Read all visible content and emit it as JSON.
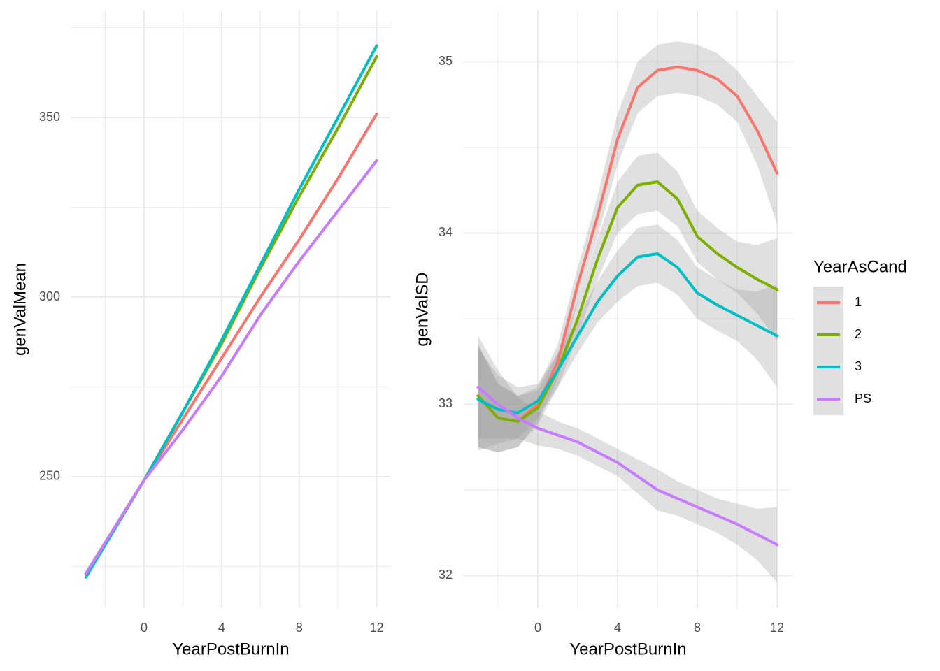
{
  "chart_data": [
    {
      "type": "line",
      "x_label": "YearPostBurnIn",
      "y_label": "genValMean",
      "x": [
        -3,
        0,
        2,
        4,
        6,
        8,
        10,
        12
      ],
      "series": [
        {
          "color": "#f8766d",
          "values": [
            223,
            249,
            266,
            283,
            300,
            316,
            333,
            351
          ]
        },
        {
          "color": "#7cae00",
          "values": [
            223,
            249,
            268,
            287,
            308,
            328,
            347,
            367
          ]
        },
        {
          "color": "#00bfc4",
          "values": [
            222,
            249,
            268,
            288,
            309,
            330,
            350,
            370
          ]
        },
        {
          "color": "#c77cff",
          "values": [
            223,
            249,
            263,
            278,
            295,
            310,
            324,
            338
          ]
        }
      ],
      "xlim": [
        -3.75,
        12.7
      ],
      "ylim": [
        213.4,
        379.8
      ],
      "xticks": [
        0,
        4,
        8,
        12
      ],
      "yticks": [
        250,
        300,
        350
      ],
      "xminor": [
        -2,
        2,
        6,
        10
      ],
      "yminor": [
        225,
        275,
        325,
        375
      ],
      "grid": true
    },
    {
      "type": "line",
      "x_label": "YearPostBurnIn",
      "y_label": "genValSD",
      "x": [
        -3,
        -2,
        -1,
        0,
        1,
        2,
        3,
        4,
        5,
        6,
        7,
        8,
        9,
        10,
        11,
        12
      ],
      "series": [
        {
          "name": "1",
          "color": "#f8766d",
          "values": [
            33.05,
            32.92,
            32.9,
            33.0,
            33.25,
            33.7,
            34.1,
            34.55,
            34.85,
            34.95,
            34.97,
            34.95,
            34.9,
            34.8,
            34.6,
            34.35
          ],
          "band": [
            0.3,
            0.2,
            0.15,
            0.1,
            0.1,
            0.1,
            0.12,
            0.15,
            0.15,
            0.15,
            0.15,
            0.15,
            0.15,
            0.15,
            0.2,
            0.3
          ]
        },
        {
          "name": "2",
          "color": "#7cae00",
          "values": [
            33.05,
            32.92,
            32.9,
            32.98,
            33.2,
            33.5,
            33.85,
            34.15,
            34.28,
            34.3,
            34.2,
            33.98,
            33.88,
            33.8,
            33.73,
            33.67
          ],
          "band": [
            0.3,
            0.2,
            0.15,
            0.1,
            0.1,
            0.1,
            0.12,
            0.15,
            0.17,
            0.17,
            0.16,
            0.15,
            0.15,
            0.15,
            0.2,
            0.3
          ]
        },
        {
          "name": "3",
          "color": "#00bfc4",
          "values": [
            33.03,
            32.97,
            32.95,
            33.02,
            33.2,
            33.4,
            33.6,
            33.75,
            33.86,
            33.88,
            33.8,
            33.65,
            33.58,
            33.52,
            33.46,
            33.4
          ],
          "band": [
            0.3,
            0.2,
            0.15,
            0.1,
            0.1,
            0.1,
            0.12,
            0.15,
            0.17,
            0.17,
            0.16,
            0.15,
            0.15,
            0.15,
            0.2,
            0.3
          ]
        },
        {
          "name": "PS",
          "color": "#c77cff",
          "values": [
            33.1,
            33.0,
            32.92,
            32.86,
            32.82,
            32.78,
            32.72,
            32.66,
            32.58,
            32.5,
            32.45,
            32.4,
            32.35,
            32.3,
            32.24,
            32.18
          ],
          "band": [
            0.3,
            0.2,
            0.12,
            0.1,
            0.08,
            0.08,
            0.08,
            0.08,
            0.1,
            0.12,
            0.1,
            0.1,
            0.1,
            0.12,
            0.15,
            0.22
          ]
        }
      ],
      "xlim": [
        -3.72,
        12.77
      ],
      "ylim": [
        31.81,
        35.3
      ],
      "xticks": [
        0,
        4,
        8,
        12
      ],
      "yticks": [
        32,
        33,
        34,
        35
      ],
      "xminor": [
        -2,
        2,
        6,
        10
      ],
      "yminor": [
        32.5,
        33.5,
        34.5
      ],
      "grid": true,
      "legend_title": "YearAsCand",
      "legend": "right"
    }
  ]
}
